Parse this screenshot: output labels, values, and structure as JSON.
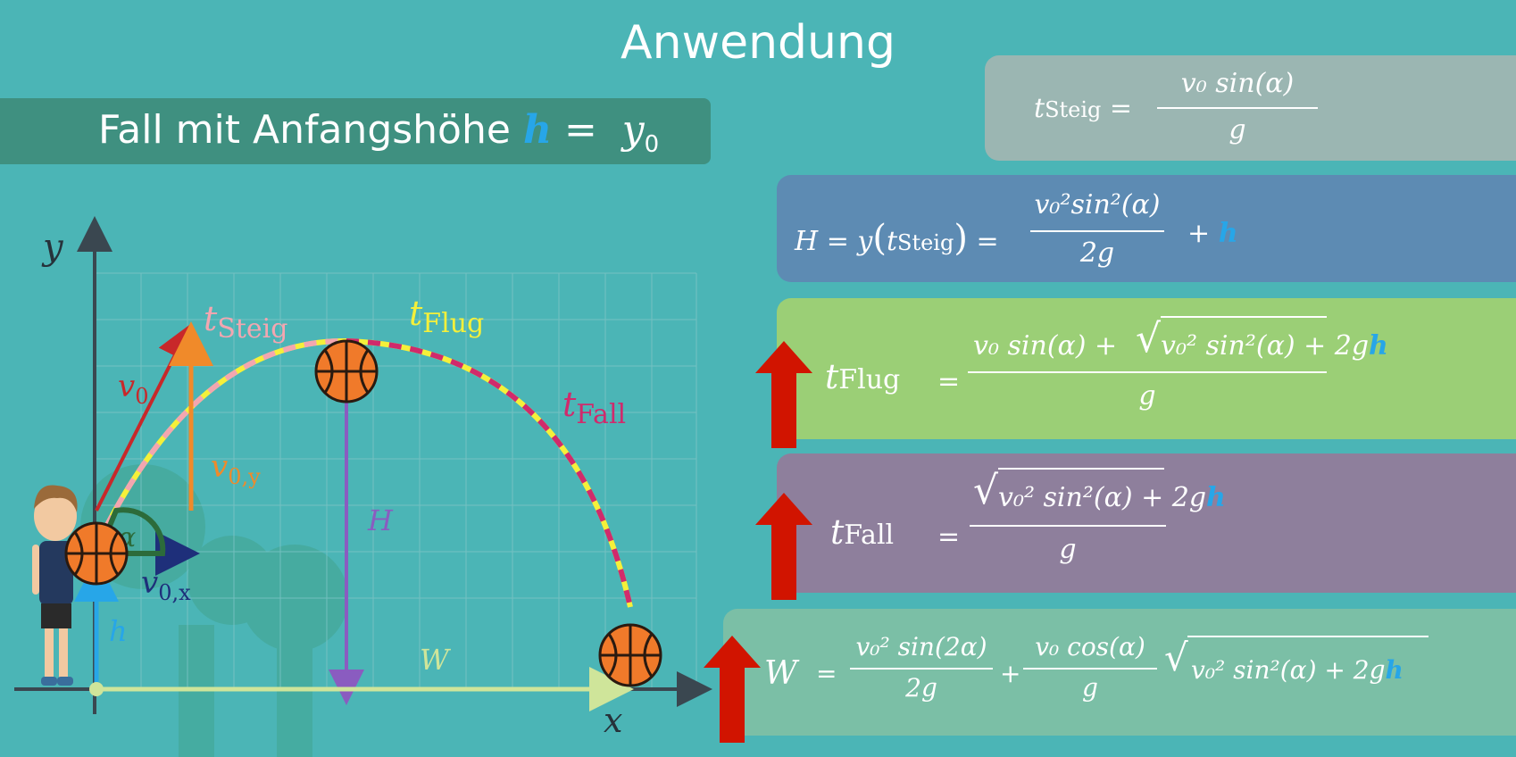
{
  "title": "Anwendung",
  "subtitle": {
    "text": "Fall mit Anfangshöhe",
    "h_symbol": "h",
    "equals": "=",
    "y_symbol": "y",
    "y_subscript": "0"
  },
  "diagram": {
    "axis_y_label": "y",
    "axis_x_label": "x",
    "v0_label": "v",
    "v0_sub": "0",
    "v0y_label": "v",
    "v0y_sub": "0,y",
    "v0x_label": "v",
    "v0x_sub": "0,x",
    "alpha_label": "α",
    "h_label": "h",
    "H_label": "H",
    "W_label": "W",
    "t_steig_label": "t",
    "t_steig_sub": "Steig",
    "t_flug_label": "t",
    "t_flug_sub": "Flug",
    "t_fall_label": "t",
    "t_fall_sub": "Fall"
  },
  "formulas": {
    "t_steig": {
      "lhs": "t",
      "lhs_sub": "Steig",
      "num": "v₀ sin(α)",
      "den": "g"
    },
    "H": {
      "lhs": "H = y",
      "arg": "t",
      "arg_sub": "Steig",
      "num": "v₀²sin²(α)",
      "den": "2g",
      "plus": "+",
      "h": "h"
    },
    "t_flug": {
      "lhs": "t",
      "lhs_sub": "Flug",
      "num_a": "v₀ sin(α) +",
      "sqrt": "v₀² sin²(α) + 2g",
      "h": "h",
      "den": "g"
    },
    "t_fall": {
      "lhs": "t",
      "lhs_sub": "Fall",
      "sqrt": "v₀² sin²(α) + 2g",
      "h": "h",
      "den": "g"
    },
    "W": {
      "lhs": "W",
      "frac1_num": "v₀² sin(2α)",
      "frac1_den": "2g",
      "plus": "+",
      "frac2_num": "v₀ cos(α)",
      "frac2_den": "g",
      "sqrt": "v₀² sin²(α) + 2g",
      "h": "h"
    }
  },
  "colors": {
    "background": "#4bb5b6",
    "arrow_red": "#d11400",
    "h_blue": "#27a6e8",
    "t_steig_pink": "#f3a6b0",
    "t_flug_yellow": "#f5f03a",
    "t_fall_magenta": "#d02a6c",
    "v0_red": "#c8282a",
    "v0y_orange": "#f08a2a",
    "v0x_navy": "#1e2f7a",
    "H_purple": "#8a5cc0",
    "W_green": "#cfe59a",
    "alpha_green": "#2c6b3a"
  },
  "icons": [
    "basketball-icon",
    "boy-character-icon",
    "red-up-arrow-icon"
  ]
}
